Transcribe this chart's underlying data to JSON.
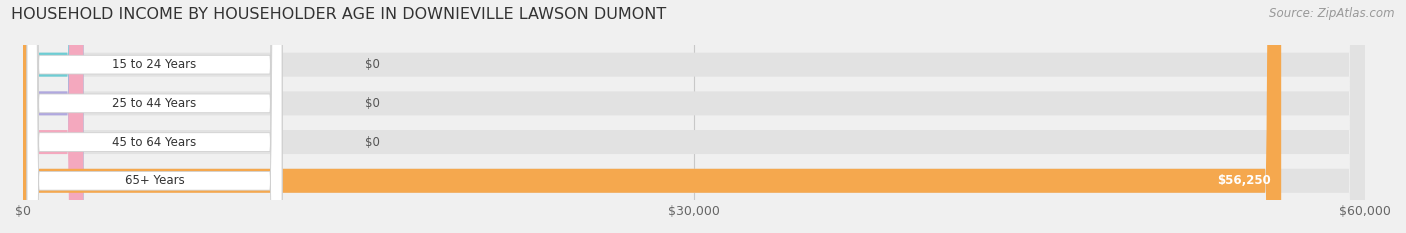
{
  "title": "HOUSEHOLD INCOME BY HOUSEHOLDER AGE IN DOWNIEVILLE LAWSON DUMONT",
  "source": "Source: ZipAtlas.com",
  "categories": [
    "15 to 24 Years",
    "25 to 44 Years",
    "45 to 64 Years",
    "65+ Years"
  ],
  "values": [
    0,
    0,
    0,
    56250
  ],
  "bar_colors": [
    "#6dcdd4",
    "#b0a8df",
    "#f4a8be",
    "#f5a84e"
  ],
  "xlim": [
    0,
    60000
  ],
  "xticks": [
    0,
    30000,
    60000
  ],
  "xtick_labels": [
    "$0",
    "$30,000",
    "$60,000"
  ],
  "bg_color": "#f0f0f0",
  "bar_bg_color": "#e2e2e2",
  "title_fontsize": 11.5,
  "source_fontsize": 8.5,
  "figsize": [
    14.06,
    2.33
  ]
}
